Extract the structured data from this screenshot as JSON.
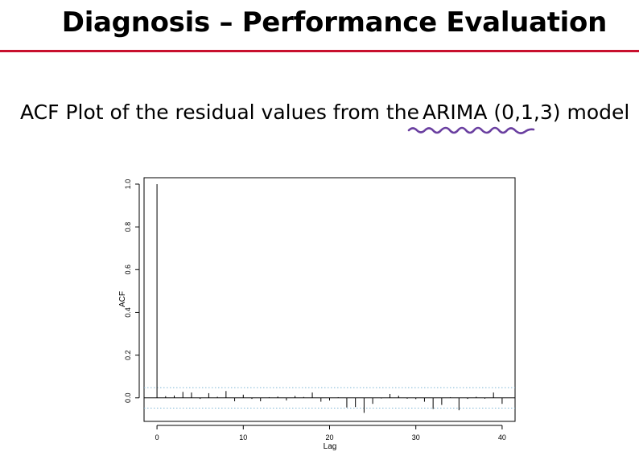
{
  "slide": {
    "title": "Diagnosis – Performance Evaluation",
    "subtitle_prefix": "ACF Plot of the residual values from the",
    "subtitle_model": "ARIMA (0,1,3)",
    "subtitle_suffix": "model",
    "colors": {
      "title_rule": "#c8102e",
      "annotation_ink": "#6a3fa0",
      "confidence_band": "#7fb7d6"
    },
    "annotation": "purple hand-drawn wavy underline beneath the model name"
  },
  "chart_data": {
    "type": "bar",
    "title": "",
    "xlabel": "Lag",
    "ylabel": "ACF",
    "xlim": [
      -1.5,
      41.5
    ],
    "ylim": [
      -0.11,
      1.03
    ],
    "x_ticks": [
      0,
      10,
      20,
      30,
      40
    ],
    "y_ticks": [
      0.0,
      0.2,
      0.4,
      0.6,
      0.8,
      1.0
    ],
    "grid": false,
    "confidence_limits": [
      0.048,
      -0.048
    ],
    "lags": [
      0,
      1,
      2,
      3,
      4,
      5,
      6,
      7,
      8,
      9,
      10,
      11,
      12,
      13,
      14,
      15,
      16,
      17,
      18,
      19,
      20,
      21,
      22,
      23,
      24,
      25,
      26,
      27,
      28,
      29,
      30,
      31,
      32,
      33,
      34,
      35,
      36,
      37,
      38,
      39,
      40
    ],
    "acf": [
      1.0,
      0.008,
      0.011,
      0.028,
      0.025,
      -0.005,
      0.022,
      0.005,
      0.032,
      -0.016,
      0.015,
      -0.005,
      -0.016,
      0.003,
      0.006,
      -0.012,
      0.009,
      0.004,
      0.025,
      -0.018,
      -0.012,
      0.003,
      -0.045,
      -0.043,
      -0.07,
      -0.028,
      -0.003,
      0.018,
      0.01,
      -0.004,
      -0.006,
      -0.018,
      -0.052,
      -0.033,
      0.003,
      -0.058,
      -0.005,
      0.005,
      -0.004,
      0.025,
      -0.028
    ]
  }
}
